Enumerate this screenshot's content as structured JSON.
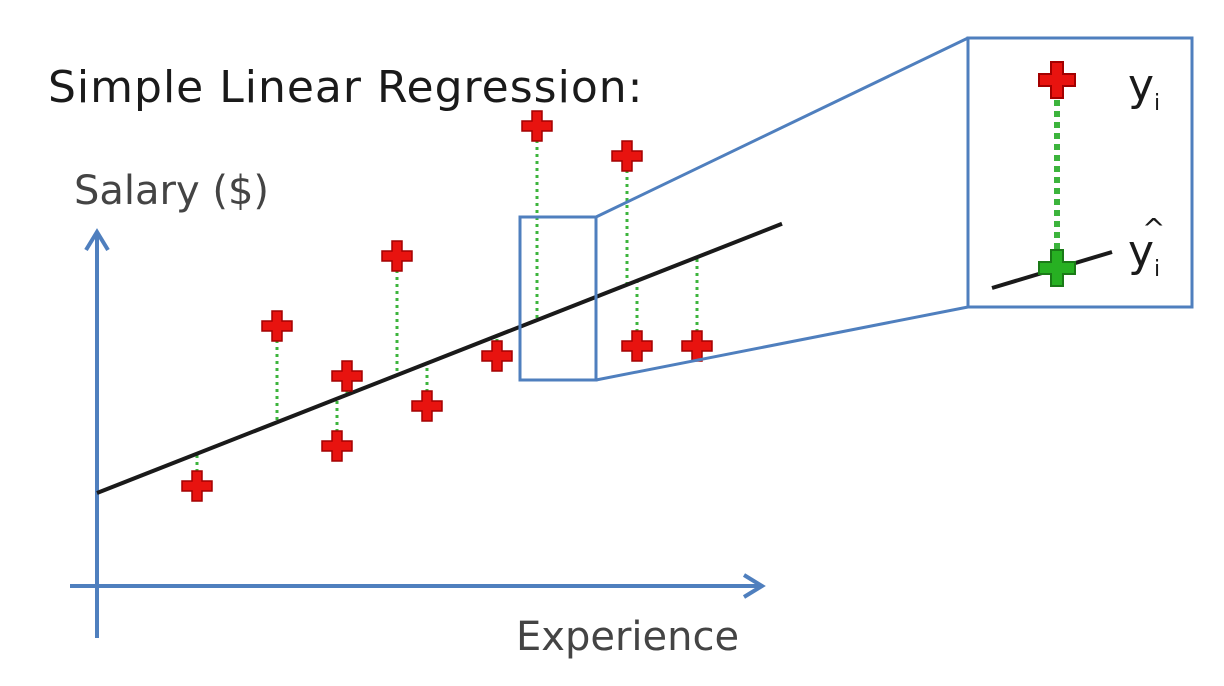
{
  "diagram": {
    "title": "Simple Linear Regression:",
    "y_axis_label": "Salary ($)",
    "x_axis_label": "Experience",
    "inset": {
      "actual_label": "y",
      "actual_subscript": "i",
      "predicted_label": "y",
      "predicted_hat": "^",
      "predicted_subscript": "i"
    }
  },
  "colors": {
    "axis": "#4f7fbe",
    "regression_line": "#1a1a1a",
    "actual_point": "#e8130f",
    "predicted_point": "#27b022",
    "residual": "#3cb43c",
    "callout_box": "#4f7fbe"
  },
  "chart_data": {
    "type": "scatter",
    "x": [
      1.0,
      1.8,
      2.4,
      2.5,
      3.0,
      3.3,
      4.0,
      4.4,
      5.3,
      5.4,
      6.0
    ],
    "y": [
      1.0,
      2.6,
      1.4,
      2.1,
      3.3,
      1.8,
      2.3,
      4.6,
      4.3,
      2.4,
      2.4
    ],
    "regression_line": {
      "slope": 0.393,
      "intercept": 0.93
    },
    "xlim": [
      0,
      7
    ],
    "ylim": [
      0,
      5
    ],
    "residuals_shown": true,
    "highlighted_point_index": 7,
    "grid": false
  }
}
